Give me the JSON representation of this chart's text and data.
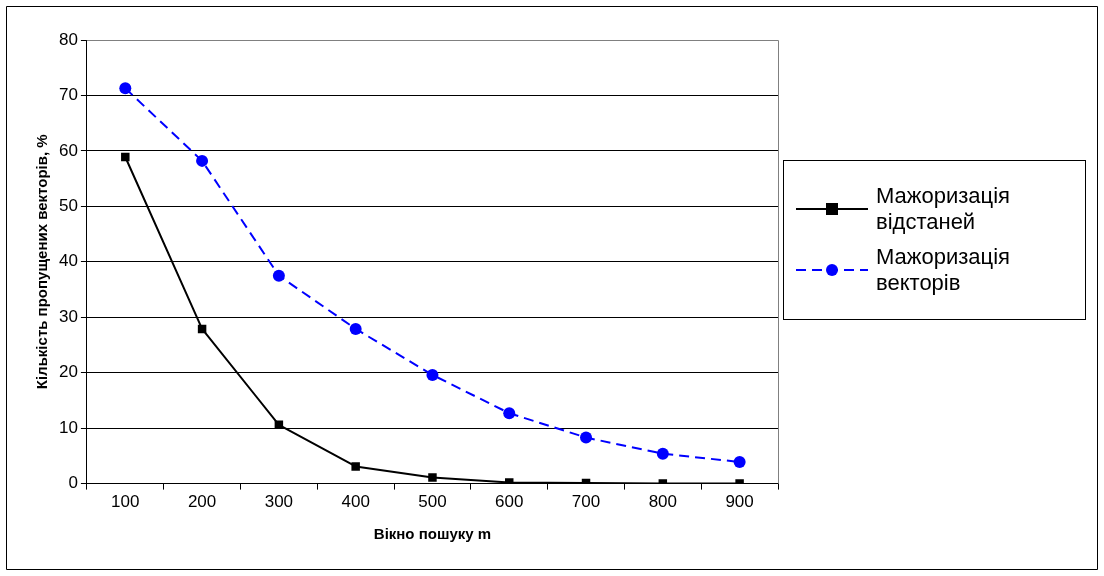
{
  "chart_data": {
    "type": "line",
    "xlabel": "Вікно пошуку m",
    "ylabel": "Кількість пропущених векторів, %",
    "categories": [
      "100",
      "200",
      "300",
      "400",
      "500",
      "600",
      "700",
      "800",
      "900"
    ],
    "series": [
      {
        "name": "Мажоризація відстаней",
        "color": "#000000",
        "marker": "square",
        "line_style": "solid",
        "values": [
          58.9,
          27.9,
          10.6,
          3.1,
          1.1,
          0.2,
          0.1,
          0,
          0
        ]
      },
      {
        "name": "Мажоризація векторів",
        "color": "#0000ff",
        "marker": "circle",
        "line_style": "dashed",
        "values": [
          71.3,
          58.2,
          37.5,
          27.9,
          19.6,
          12.7,
          8.3,
          5.4,
          3.9
        ]
      }
    ],
    "ylim": [
      0,
      80
    ],
    "yticks": [
      0,
      10,
      20,
      30,
      40,
      50,
      60,
      70,
      80
    ],
    "grid": "y",
    "legend": "right"
  }
}
